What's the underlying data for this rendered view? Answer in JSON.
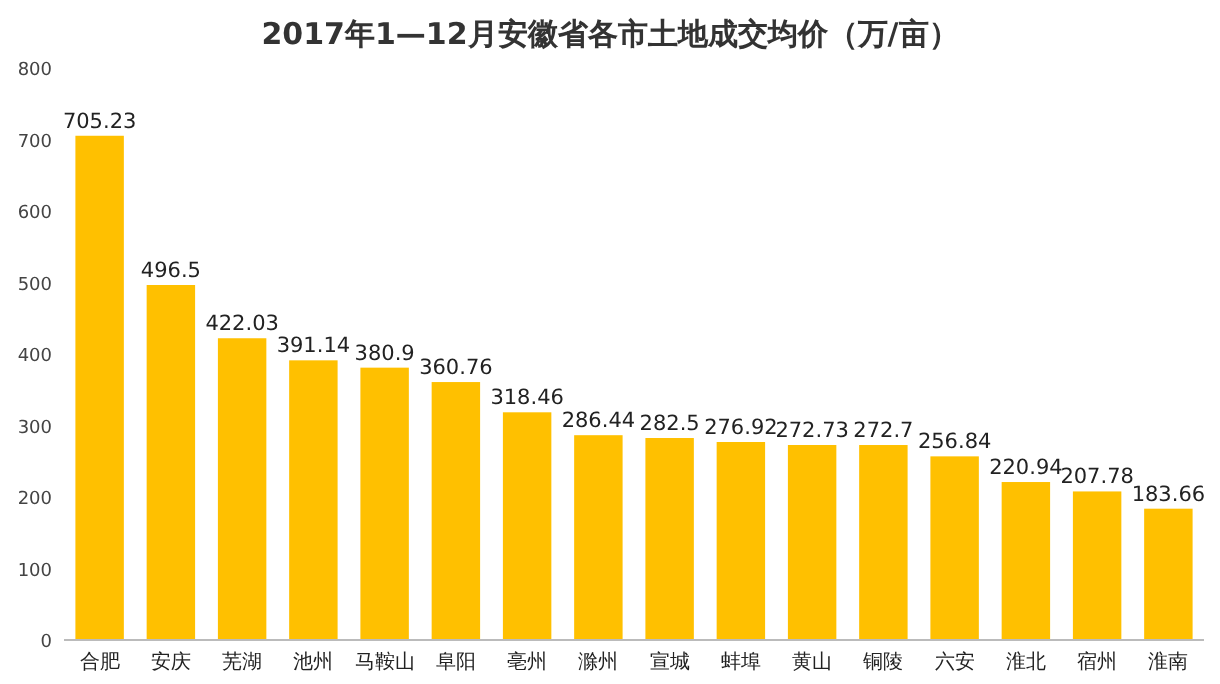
{
  "chart_data": {
    "type": "bar",
    "title": "2017年1—12月安徽省各市土地成交均价（万/亩）",
    "categories": [
      "合肥",
      "安庆",
      "芜湖",
      "池州",
      "马鞍山",
      "阜阳",
      "亳州",
      "滁州",
      "宣城",
      "蚌埠",
      "黄山",
      "铜陵",
      "六安",
      "淮北",
      "宿州",
      "淮南"
    ],
    "values": [
      705.23,
      496.5,
      422.03,
      391.14,
      380.9,
      360.76,
      318.46,
      286.44,
      282.5,
      276.92,
      272.73,
      272.7,
      256.84,
      220.94,
      207.78,
      183.66
    ],
    "color": "#ffc000",
    "ylim": [
      0,
      800
    ],
    "yticks": [
      0,
      100,
      200,
      300,
      400,
      500,
      600,
      700,
      800
    ],
    "data_labels": true,
    "grid": false
  }
}
